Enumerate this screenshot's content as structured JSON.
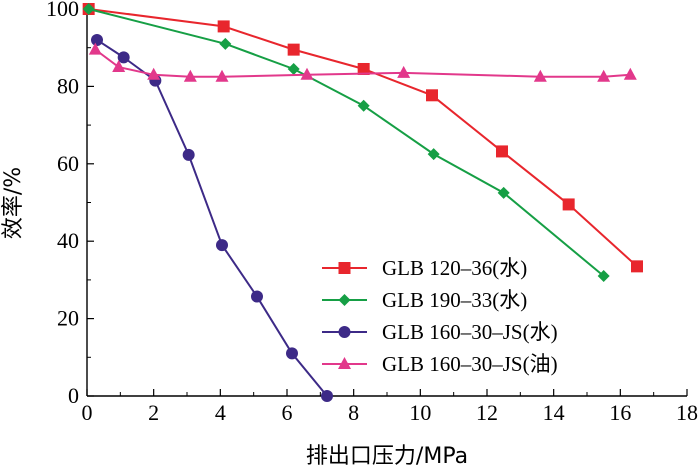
{
  "chart_data": {
    "type": "line",
    "xlabel": "排出口压力/MPa",
    "ylabel": "效率/%",
    "xlim": [
      0,
      18
    ],
    "ylim": [
      0,
      100
    ],
    "xticks": [
      "0",
      "2",
      "4",
      "6",
      "8",
      "10",
      "12",
      "14",
      "16",
      "18"
    ],
    "yticks": [
      "0",
      "20",
      "40",
      "60",
      "80",
      "100"
    ],
    "grid": false,
    "legend_position": "lower-right",
    "series": [
      {
        "name": "GLB 120–36(水)",
        "color": "#e8262d",
        "marker": "square",
        "x": [
          0.05,
          4.1,
          6.2,
          8.3,
          10.35,
          12.45,
          14.45,
          16.5
        ],
        "y": [
          100,
          95.5,
          89.5,
          84.5,
          77.7,
          63.2,
          49.5,
          33.5
        ]
      },
      {
        "name": "GLB 190–33(水)",
        "color": "#169f45",
        "marker": "diamond",
        "x": [
          0.05,
          4.15,
          6.2,
          8.3,
          10.4,
          12.5,
          15.5
        ],
        "y": [
          100,
          91,
          84.5,
          75,
          62.5,
          52.5,
          31
        ]
      },
      {
        "name": "GLB 160–30–JS(水)",
        "color": "#3d2a87",
        "marker": "circle",
        "x": [
          0.3,
          1.1,
          2.05,
          3.05,
          4.05,
          5.1,
          6.15,
          7.2
        ],
        "y": [
          92,
          87.5,
          81.5,
          62.3,
          39,
          25.7,
          11,
          0
        ]
      },
      {
        "name": "GLB 160–30–JS(油)",
        "color": "#e2388b",
        "marker": "triangle",
        "x": [
          0.25,
          0.95,
          2.0,
          3.1,
          4.05,
          6.6,
          9.5,
          13.6,
          15.5,
          16.3
        ],
        "y": [
          89.5,
          85,
          83,
          82.5,
          82.5,
          83,
          83.5,
          82.5,
          82.5,
          83
        ]
      }
    ]
  }
}
